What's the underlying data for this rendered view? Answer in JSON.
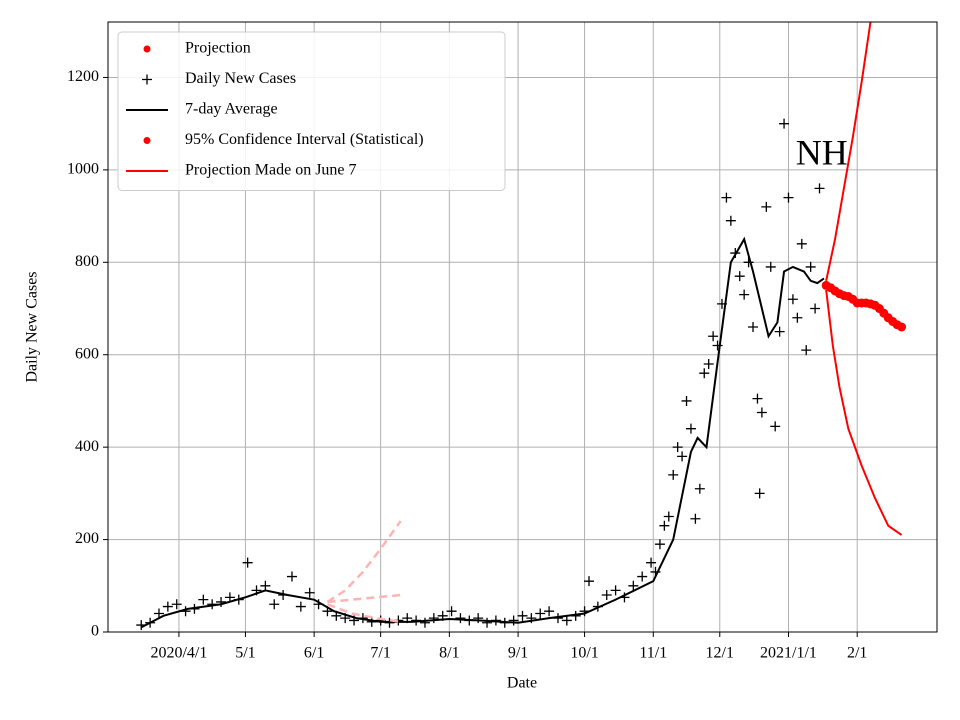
{
  "chart_data": {
    "type": "line",
    "annotation": "NH",
    "annotation_at": {
      "x": "2021-01-16",
      "y": 1030
    },
    "xlabel": "Date",
    "ylabel": "Daily New Cases",
    "xlim": [
      "2020-02-29",
      "2021-03-09"
    ],
    "ylim": [
      0,
      1320
    ],
    "yticks": [
      0,
      200,
      400,
      600,
      800,
      1000,
      1200
    ],
    "xticks": [
      {
        "value": "2020-04-01",
        "label": "2020/4/1"
      },
      {
        "value": "2020-05-01",
        "label": "5/1"
      },
      {
        "value": "2020-06-01",
        "label": "6/1"
      },
      {
        "value": "2020-07-01",
        "label": "7/1"
      },
      {
        "value": "2020-08-01",
        "label": "8/1"
      },
      {
        "value": "2020-09-01",
        "label": "9/1"
      },
      {
        "value": "2020-10-01",
        "label": "10/1"
      },
      {
        "value": "2020-11-01",
        "label": "11/1"
      },
      {
        "value": "2020-12-01",
        "label": "12/1"
      },
      {
        "value": "2021-01-01",
        "label": "2021/1/1"
      },
      {
        "value": "2021-02-01",
        "label": "2/1"
      }
    ],
    "grid": true,
    "legend": "upper left",
    "series": [
      {
        "name": "Projection",
        "color": "#ff0000",
        "marker": "dot",
        "x": [
          "2021-01-18",
          "2021-01-20",
          "2021-01-22",
          "2021-01-24",
          "2021-01-26",
          "2021-01-28",
          "2021-01-30",
          "2021-02-01",
          "2021-02-03",
          "2021-02-05",
          "2021-02-07",
          "2021-02-09",
          "2021-02-11",
          "2021-02-13",
          "2021-02-15",
          "2021-02-17",
          "2021-02-19",
          "2021-02-21"
        ],
        "values": [
          750,
          745,
          738,
          732,
          728,
          726,
          720,
          712,
          712,
          712,
          710,
          707,
          700,
          690,
          680,
          672,
          665,
          660
        ]
      },
      {
        "name": "Daily New Cases",
        "color": "#000000",
        "marker": "plus",
        "x": [
          "2020-03-15",
          "2020-03-19",
          "2020-03-23",
          "2020-03-27",
          "2020-03-31",
          "2020-04-04",
          "2020-04-08",
          "2020-04-12",
          "2020-04-16",
          "2020-04-20",
          "2020-04-24",
          "2020-04-28",
          "2020-05-02",
          "2020-05-06",
          "2020-05-10",
          "2020-05-14",
          "2020-05-18",
          "2020-05-22",
          "2020-05-26",
          "2020-05-30",
          "2020-06-03",
          "2020-06-07",
          "2020-06-11",
          "2020-06-15",
          "2020-06-19",
          "2020-06-23",
          "2020-06-27",
          "2020-07-01",
          "2020-07-05",
          "2020-07-09",
          "2020-07-13",
          "2020-07-17",
          "2020-07-21",
          "2020-07-25",
          "2020-07-29",
          "2020-08-02",
          "2020-08-06",
          "2020-08-10",
          "2020-08-14",
          "2020-08-18",
          "2020-08-22",
          "2020-08-26",
          "2020-08-30",
          "2020-09-03",
          "2020-09-07",
          "2020-09-11",
          "2020-09-15",
          "2020-09-19",
          "2020-09-23",
          "2020-09-27",
          "2020-10-01",
          "2020-10-03",
          "2020-10-07",
          "2020-10-11",
          "2020-10-15",
          "2020-10-19",
          "2020-10-23",
          "2020-10-27",
          "2020-10-31",
          "2020-11-02",
          "2020-11-04",
          "2020-11-06",
          "2020-11-08",
          "2020-11-10",
          "2020-11-12",
          "2020-11-14",
          "2020-11-16",
          "2020-11-18",
          "2020-11-20",
          "2020-11-22",
          "2020-11-24",
          "2020-11-26",
          "2020-11-28",
          "2020-11-30",
          "2020-12-02",
          "2020-12-04",
          "2020-12-06",
          "2020-12-08",
          "2020-12-10",
          "2020-12-12",
          "2020-12-14",
          "2020-12-16",
          "2020-12-18",
          "2020-12-19",
          "2020-12-20",
          "2020-12-22",
          "2020-12-24",
          "2020-12-26",
          "2020-12-28",
          "2020-12-30",
          "2021-01-01",
          "2021-01-03",
          "2021-01-05",
          "2021-01-07",
          "2021-01-09",
          "2021-01-11",
          "2021-01-13",
          "2021-01-15"
        ],
        "values": [
          15,
          20,
          40,
          55,
          60,
          45,
          50,
          70,
          60,
          65,
          75,
          70,
          150,
          90,
          100,
          60,
          80,
          120,
          55,
          85,
          60,
          45,
          35,
          30,
          25,
          30,
          22,
          25,
          20,
          25,
          30,
          25,
          20,
          30,
          35,
          45,
          30,
          25,
          30,
          20,
          25,
          20,
          25,
          35,
          30,
          40,
          45,
          30,
          25,
          35,
          45,
          110,
          55,
          80,
          90,
          75,
          100,
          120,
          150,
          130,
          190,
          230,
          250,
          340,
          400,
          380,
          500,
          440,
          245,
          310,
          560,
          580,
          640,
          620,
          710,
          940,
          890,
          820,
          770,
          730,
          800,
          660,
          505,
          300,
          475,
          920,
          790,
          445,
          650,
          1100,
          940,
          720,
          680,
          840,
          610,
          790,
          700,
          960
        ]
      },
      {
        "name": "7-day Average",
        "color": "#000000",
        "marker": "line",
        "x": [
          "2020-03-15",
          "2020-03-25",
          "2020-04-05",
          "2020-04-20",
          "2020-05-01",
          "2020-05-10",
          "2020-05-20",
          "2020-06-01",
          "2020-06-10",
          "2020-06-20",
          "2020-07-01",
          "2020-07-15",
          "2020-08-01",
          "2020-08-15",
          "2020-09-01",
          "2020-09-15",
          "2020-10-01",
          "2020-10-15",
          "2020-11-01",
          "2020-11-10",
          "2020-11-18",
          "2020-11-21",
          "2020-11-25",
          "2020-12-01",
          "2020-12-06",
          "2020-12-12",
          "2020-12-16",
          "2020-12-20",
          "2020-12-23",
          "2020-12-27",
          "2020-12-30",
          "2021-01-03",
          "2021-01-08",
          "2021-01-11",
          "2021-01-14",
          "2021-01-17"
        ],
        "values": [
          10,
          35,
          50,
          60,
          75,
          90,
          80,
          70,
          45,
          30,
          22,
          22,
          28,
          25,
          20,
          30,
          40,
          70,
          110,
          200,
          390,
          420,
          400,
          620,
          800,
          850,
          780,
          700,
          640,
          670,
          780,
          790,
          780,
          760,
          755,
          765
        ]
      },
      {
        "name": "95% Confidence Interval (Statistical)",
        "color": "#ff0000",
        "marker": "dot",
        "upper": {
          "x": [
            "2021-01-18",
            "2021-01-22",
            "2021-01-26",
            "2021-01-30",
            "2021-02-03",
            "2021-02-07"
          ],
          "values": [
            760,
            850,
            960,
            1070,
            1190,
            1320
          ]
        },
        "lower": {
          "x": [
            "2021-01-18",
            "2021-01-21",
            "2021-01-24",
            "2021-01-28",
            "2021-02-03",
            "2021-02-09",
            "2021-02-15",
            "2021-02-21"
          ],
          "values": [
            740,
            620,
            530,
            440,
            360,
            290,
            230,
            210
          ]
        }
      },
      {
        "name": "Projection Made on June 7",
        "color": "#ff0000",
        "marker": "line",
        "line_color": "#ffb3b3",
        "dashed": true,
        "curves": [
          {
            "x": [
              "2020-06-07",
              "2020-06-15",
              "2020-06-23",
              "2020-07-01",
              "2020-07-10"
            ],
            "values": [
              65,
              90,
              130,
              180,
              240
            ]
          },
          {
            "x": [
              "2020-06-07",
              "2020-06-18",
              "2020-06-29",
              "2020-07-10"
            ],
            "values": [
              65,
              70,
              75,
              80
            ]
          },
          {
            "x": [
              "2020-06-07",
              "2020-06-18",
              "2020-06-29",
              "2020-07-10"
            ],
            "values": [
              60,
              40,
              30,
              22
            ]
          }
        ]
      }
    ]
  }
}
